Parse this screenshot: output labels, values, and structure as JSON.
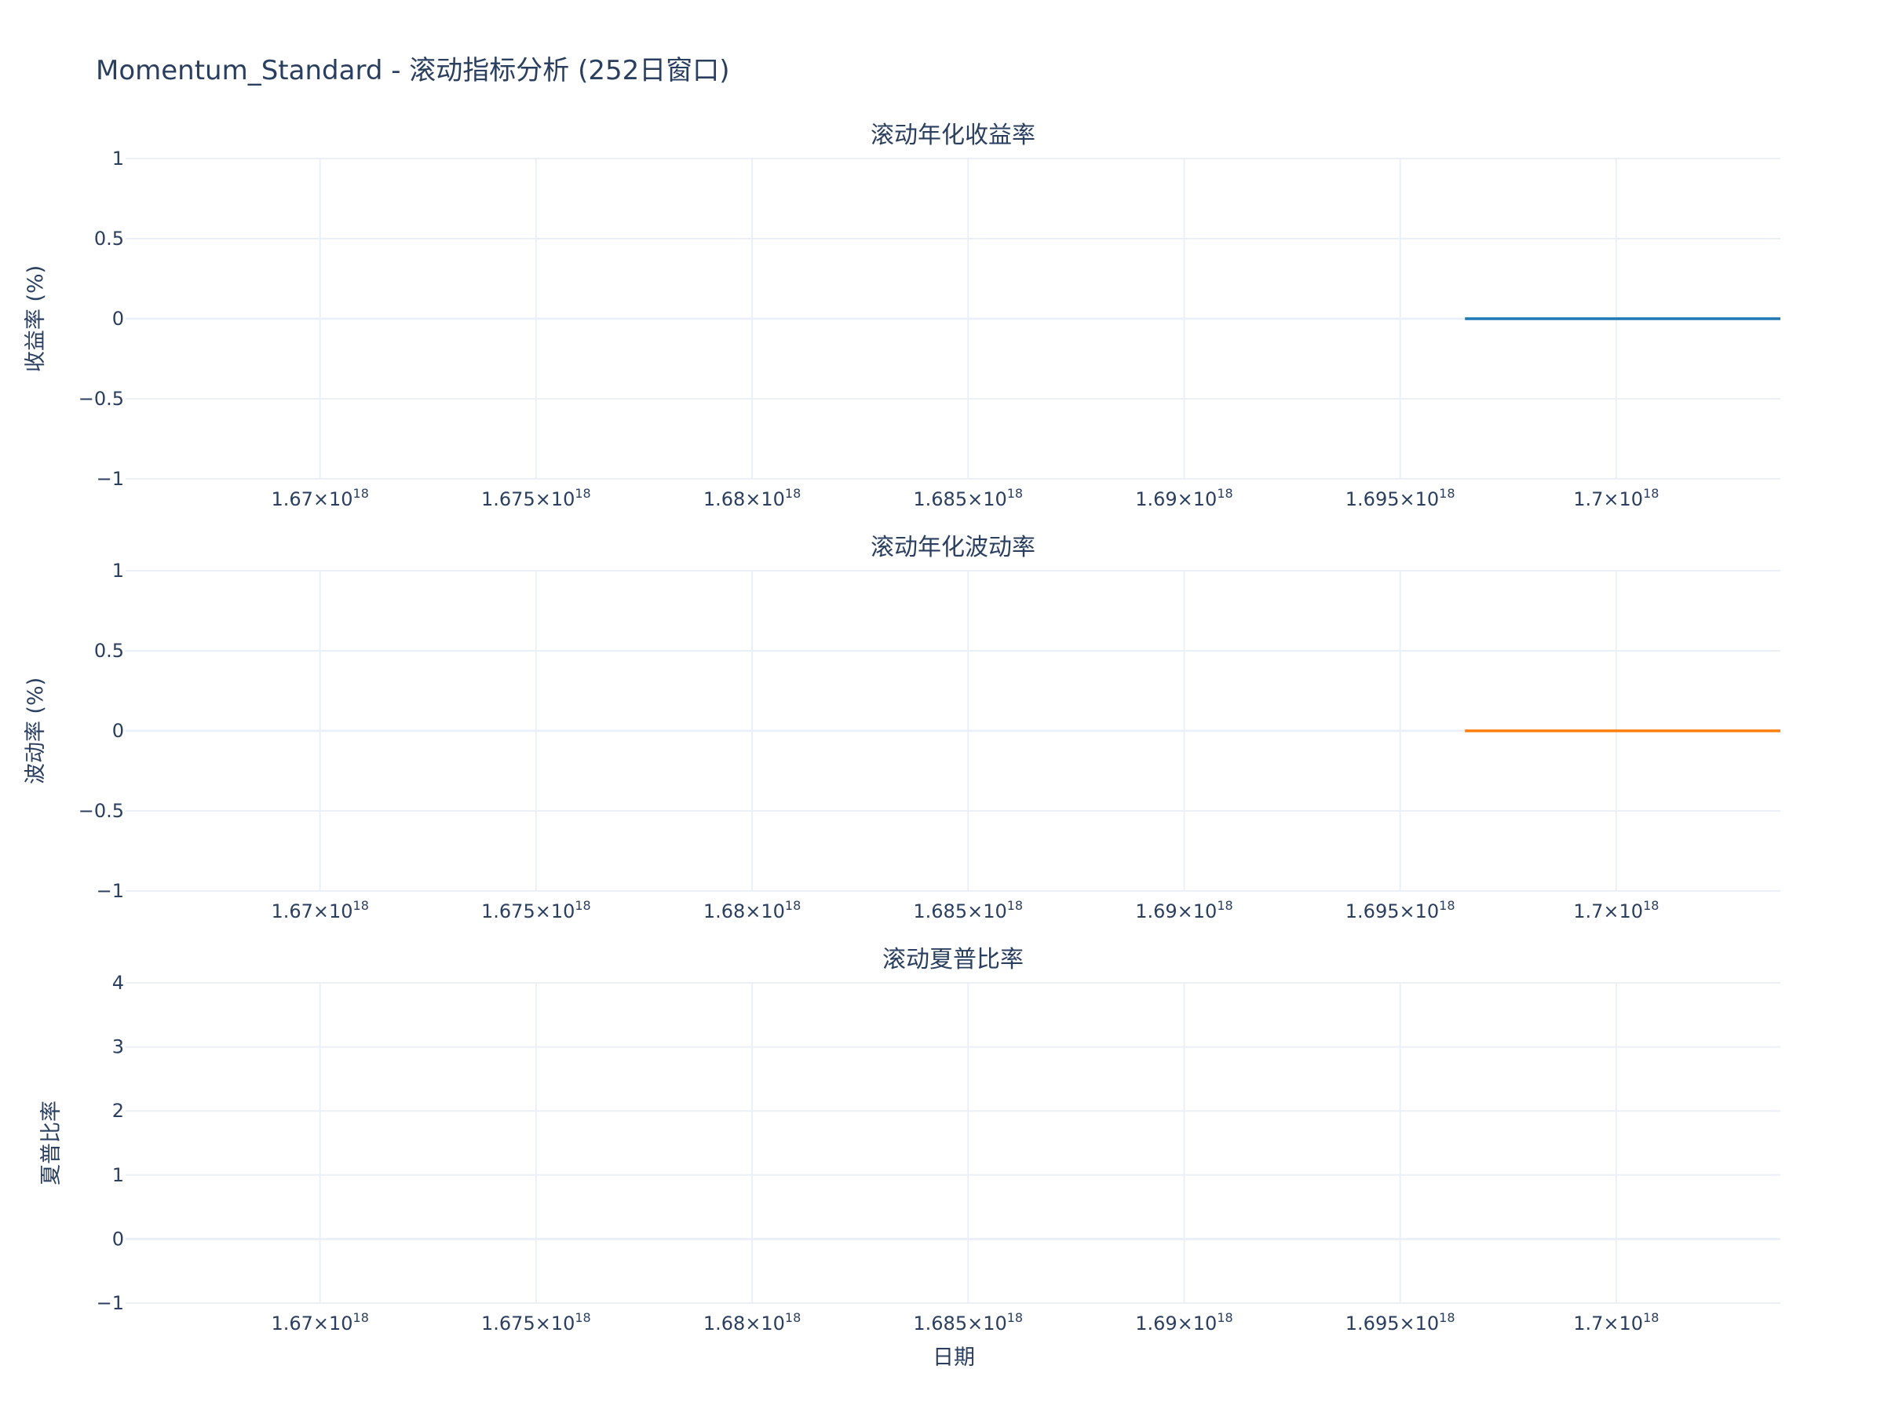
{
  "title": "Momentum_Standard - 滚动指标分析 (252日窗口)",
  "xlabel": "日期",
  "x_tick_labels": [
    {
      "mantissa": "1.67",
      "exponent": "18"
    },
    {
      "mantissa": "1.675",
      "exponent": "18"
    },
    {
      "mantissa": "1.68",
      "exponent": "18"
    },
    {
      "mantissa": "1.685",
      "exponent": "18"
    },
    {
      "mantissa": "1.69",
      "exponent": "18"
    },
    {
      "mantissa": "1.695",
      "exponent": "18"
    },
    {
      "mantissa": "1.7",
      "exponent": "18"
    }
  ],
  "colors": {
    "returns": "#1f77b4",
    "volatility": "#ff7f0e",
    "sharpe": "#2ca02c",
    "grid": "#ebf0f8",
    "text": "#2a3f5f"
  },
  "chart_data": [
    {
      "type": "line",
      "title": "滚动年化收益率",
      "ylabel": "收益率 (%)",
      "xlim": [
        1.6655e+18,
        1.7038e+18
      ],
      "ylim": [
        -1,
        1
      ],
      "yticks": [
        1,
        0.5,
        0,
        -0.5,
        -1
      ],
      "ytick_labels": [
        "1",
        "0.5",
        "0",
        "−0.5",
        "−1"
      ],
      "xticks": [
        1.67e+18,
        1.675e+18,
        1.68e+18,
        1.685e+18,
        1.69e+18,
        1.695e+18,
        1.7e+18
      ],
      "grid": true,
      "series": [
        {
          "color": "#1f77b4",
          "x": [
            1.6965e+18,
            1.7038e+18
          ],
          "y": [
            0,
            0
          ]
        }
      ]
    },
    {
      "type": "line",
      "title": "滚动年化波动率",
      "ylabel": "波动率 (%)",
      "xlim": [
        1.6655e+18,
        1.7038e+18
      ],
      "ylim": [
        -1,
        1
      ],
      "yticks": [
        1,
        0.5,
        0,
        -0.5,
        -1
      ],
      "ytick_labels": [
        "1",
        "0.5",
        "0",
        "−0.5",
        "−1"
      ],
      "xticks": [
        1.67e+18,
        1.675e+18,
        1.68e+18,
        1.685e+18,
        1.69e+18,
        1.695e+18,
        1.7e+18
      ],
      "grid": true,
      "series": [
        {
          "color": "#ff7f0e",
          "x": [
            1.6965e+18,
            1.7038e+18
          ],
          "y": [
            0,
            0
          ]
        }
      ]
    },
    {
      "type": "line",
      "title": "滚动夏普比率",
      "ylabel": "夏普比率",
      "xlim": [
        1.6655e+18,
        1.7038e+18
      ],
      "ylim": [
        -1,
        4
      ],
      "yticks": [
        4,
        3,
        2,
        1,
        0,
        -1
      ],
      "ytick_labels": [
        "4",
        "3",
        "2",
        "1",
        "0",
        "−1"
      ],
      "xticks": [
        1.67e+18,
        1.675e+18,
        1.68e+18,
        1.685e+18,
        1.69e+18,
        1.695e+18,
        1.7e+18
      ],
      "grid": true,
      "series": []
    }
  ]
}
